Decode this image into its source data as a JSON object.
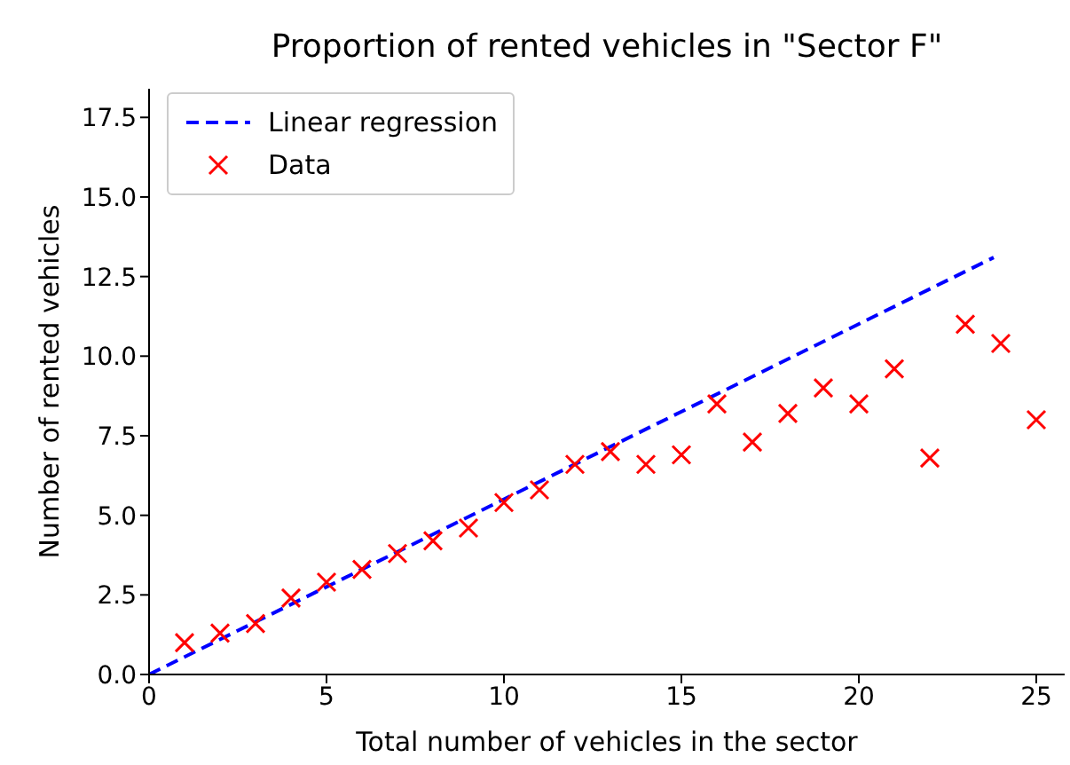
{
  "chart_data": {
    "type": "scatter",
    "title": "Proportion of rented vehicles in \"Sector F\"",
    "xlabel": "Total number of vehicles in the sector",
    "ylabel": "Number of rented vehicles",
    "series": [
      {
        "name": "Linear regression",
        "type": "line",
        "color": "#0000ff",
        "line_style": "dashed",
        "marker": "none",
        "x": [
          0,
          23.8
        ],
        "values": [
          0,
          13.1
        ]
      },
      {
        "name": "Data",
        "color": "#ff0000",
        "marker": "cross",
        "x": [
          1,
          2,
          3,
          4,
          5,
          6,
          7,
          8,
          9,
          10,
          11,
          12,
          13,
          14,
          15,
          16,
          17,
          18,
          19,
          20,
          21,
          22,
          23,
          24,
          25
        ],
        "values": [
          1.0,
          1.3,
          1.6,
          2.4,
          2.9,
          3.3,
          3.8,
          4.2,
          4.6,
          5.4,
          5.8,
          6.6,
          7.0,
          6.6,
          6.9,
          8.5,
          7.3,
          8.2,
          9.0,
          8.5,
          9.6,
          6.8,
          11.0,
          10.4,
          8.0
        ]
      }
    ],
    "xlim": [
      0,
      25.8
    ],
    "xticks": [
      0,
      5,
      10,
      15,
      20,
      25
    ],
    "ylim": [
      0,
      18.4
    ],
    "yticks": [
      {
        "value": 0,
        "label": "0.0"
      },
      2.5,
      {
        "value": 5,
        "label": "5.0"
      },
      7.5,
      {
        "value": 10,
        "label": "10.0"
      },
      12.5,
      {
        "value": 15,
        "label": "15.0"
      },
      17.5
    ],
    "grid": false,
    "legend": "top left"
  }
}
